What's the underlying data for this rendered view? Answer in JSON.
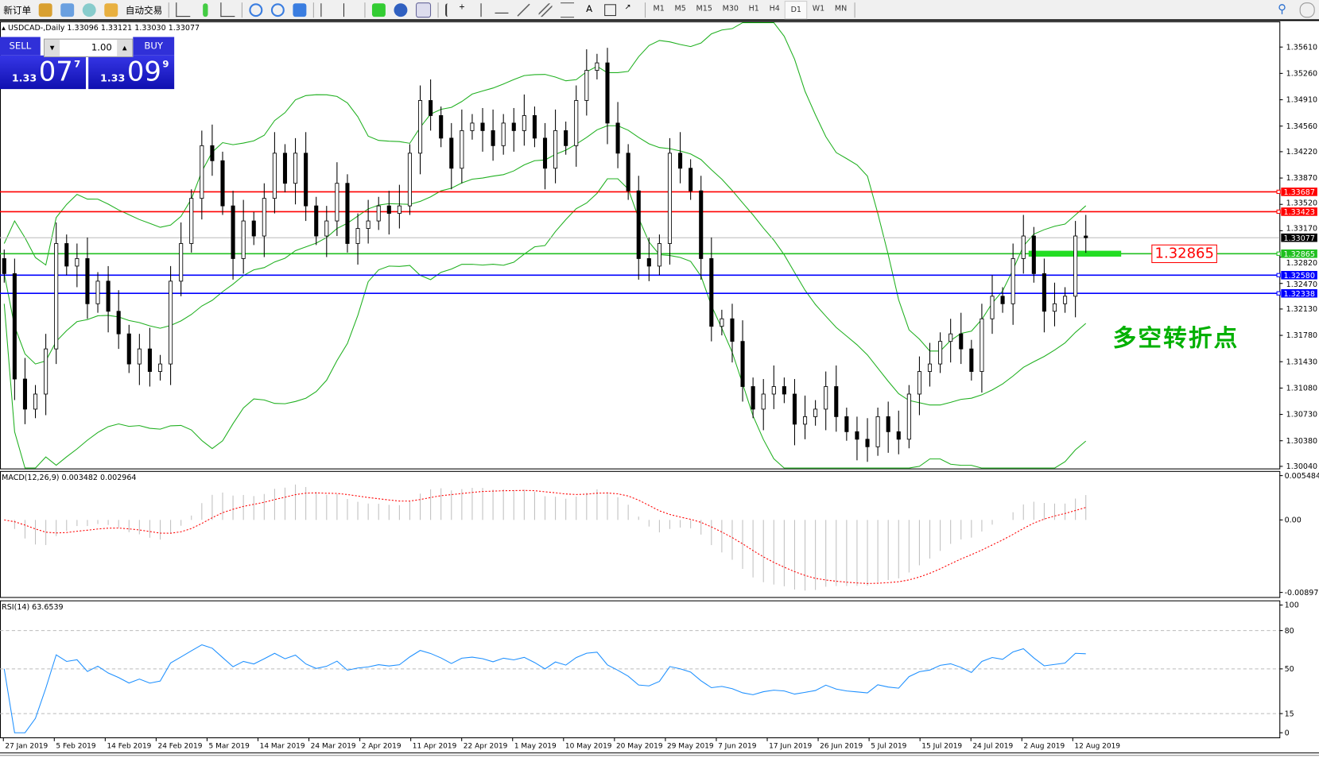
{
  "toolbar": {
    "new_order": "新订单",
    "auto_trading": "自动交易",
    "timeframes": [
      "M1",
      "M5",
      "M15",
      "M30",
      "H1",
      "H4",
      "D1",
      "W1",
      "MN"
    ],
    "active_timeframe": "D1"
  },
  "chart": {
    "title": "USDCAD-,Daily  1.33096 1.33121 1.33030 1.33077"
  },
  "trade_panel": {
    "sell": "SELL",
    "buy": "BUY",
    "volume": "1.00",
    "sell_prefix": "1.33",
    "sell_big": "07",
    "sell_sup": "7",
    "buy_prefix": "1.33",
    "buy_big": "09",
    "buy_sup": "9"
  },
  "annotation": {
    "text": "多空转折点",
    "box": "1.32865"
  },
  "colors": {
    "bull": "#ffffff",
    "bear": "#000000",
    "bands": "#20b020",
    "macd_signal": "#ff0000",
    "rsi": "#1e90ff",
    "resistance": "#ff0000",
    "pivot": "#20c020",
    "support": "#0000ff"
  },
  "chart_data": {
    "type": "candlestick",
    "price_ticks": [
      "1.35610",
      "1.35260",
      "1.34910",
      "1.34560",
      "1.34220",
      "1.33870",
      "1.33520",
      "1.33170",
      "1.32820",
      "1.32470",
      "1.32130",
      "1.31780",
      "1.31430",
      "1.31080",
      "1.30730",
      "1.30380",
      "1.30040"
    ],
    "price_range": [
      1.3004,
      1.3561
    ],
    "closes": [
      1.326,
      1.312,
      1.308,
      1.31,
      1.316,
      1.33,
      1.327,
      1.328,
      1.322,
      1.325,
      1.321,
      1.318,
      1.314,
      1.316,
      1.313,
      1.314,
      1.325,
      1.33,
      1.336,
      1.343,
      1.341,
      1.335,
      1.328,
      1.333,
      1.331,
      1.336,
      1.342,
      1.338,
      1.342,
      1.335,
      1.331,
      1.333,
      1.338,
      1.33,
      1.332,
      1.333,
      1.335,
      1.334,
      1.335,
      1.342,
      1.349,
      1.347,
      1.344,
      1.34,
      1.345,
      1.346,
      1.345,
      1.343,
      1.346,
      1.345,
      1.347,
      1.344,
      1.34,
      1.345,
      1.343,
      1.349,
      1.353,
      1.354,
      1.346,
      1.342,
      1.337,
      1.328,
      1.327,
      1.33,
      1.342,
      1.34,
      1.337,
      1.328,
      1.319,
      1.32,
      1.317,
      1.311,
      1.308,
      1.31,
      1.311,
      1.31,
      1.306,
      1.307,
      1.308,
      1.311,
      1.307,
      1.305,
      1.304,
      1.303,
      1.307,
      1.305,
      1.304,
      1.31,
      1.313,
      1.314,
      1.317,
      1.318,
      1.316,
      1.313,
      1.32,
      1.323,
      1.322,
      1.328,
      1.331,
      1.326,
      1.321,
      1.322,
      1.323,
      1.331,
      1.33077
    ],
    "horizontal_lines": [
      {
        "price": 1.33687,
        "label": "1.33687",
        "color": "#ff0000"
      },
      {
        "price": 1.33423,
        "label": "1.33423",
        "color": "#ff0000"
      },
      {
        "price": 1.32865,
        "label": "1.32865",
        "color": "#20c020"
      },
      {
        "price": 1.3258,
        "label": "1.32580",
        "color": "#0000ff"
      },
      {
        "price": 1.32338,
        "label": "1.32338",
        "color": "#0000ff"
      }
    ],
    "current_price": {
      "price": 1.33077,
      "label": "1.33077"
    },
    "dates": [
      "27 Jan 2019",
      "5 Feb 2019",
      "14 Feb 2019",
      "24 Feb 2019",
      "5 Mar 2019",
      "14 Mar 2019",
      "24 Mar 2019",
      "2 Apr 2019",
      "11 Apr 2019",
      "22 Apr 2019",
      "1 May 2019",
      "10 May 2019",
      "20 May 2019",
      "29 May 2019",
      "7 Jun 2019",
      "17 Jun 2019",
      "26 Jun 2019",
      "5 Jul 2019",
      "15 Jul 2019",
      "24 Jul 2019",
      "2 Aug 2019",
      "12 Aug 2019"
    ],
    "macd": {
      "label": "MACD(12,26,9) 0.003482 0.002964",
      "ticks": [
        "0.005484",
        "0.00",
        "-0.008973"
      ],
      "range": [
        -0.008973,
        0.005484
      ]
    },
    "rsi": {
      "label": "RSI(14) 63.6539",
      "ticks": [
        "100",
        "80",
        "50",
        "15",
        "0"
      ],
      "levels": [
        80,
        50,
        15
      ]
    }
  }
}
